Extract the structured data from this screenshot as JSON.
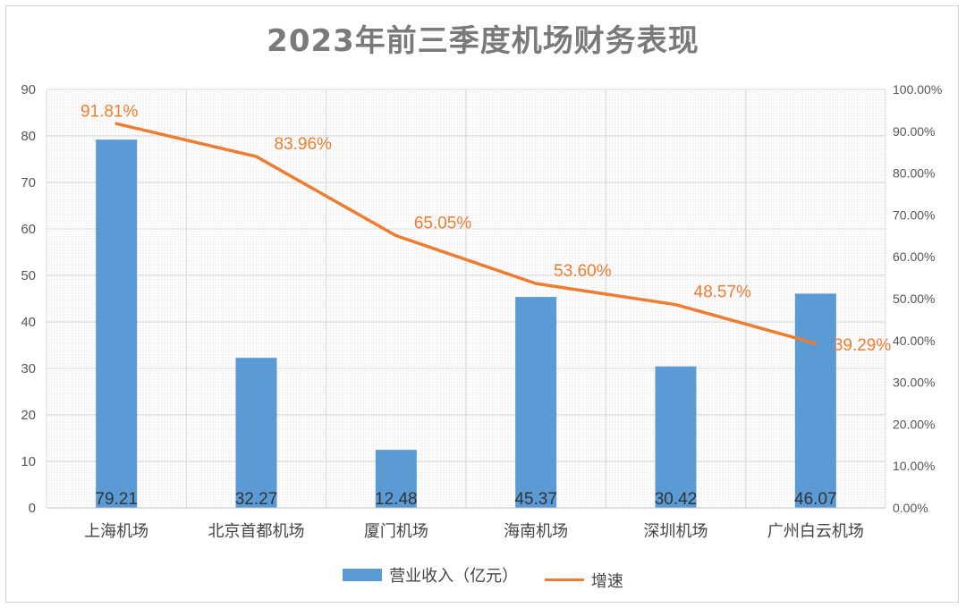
{
  "chart_data": {
    "type": "bar",
    "title": "2023年前三季度机场财务表现",
    "categories": [
      "上海机场",
      "北京首都机场",
      "厦门机场",
      "海南机场",
      "深圳机场",
      "广州白云机场"
    ],
    "series": [
      {
        "name": "营业收入（亿元）",
        "type": "bar",
        "axis": "left",
        "values": [
          79.21,
          32.27,
          12.48,
          45.37,
          30.42,
          46.07
        ],
        "labels": [
          "79.21",
          "32.27",
          "12.48",
          "45.37",
          "30.42",
          "46.07"
        ]
      },
      {
        "name": "增速",
        "type": "line",
        "axis": "right",
        "values": [
          91.81,
          83.96,
          65.05,
          53.6,
          48.57,
          39.29
        ],
        "labels": [
          "91.81%",
          "83.96%",
          "65.05%",
          "53.60%",
          "48.57%",
          "39.29%"
        ]
      }
    ],
    "ylim": [
      0,
      90
    ],
    "yticks": [
      "0",
      "10",
      "20",
      "30",
      "40",
      "50",
      "60",
      "70",
      "80",
      "90"
    ],
    "y2lim": [
      0,
      100
    ],
    "y2ticks": [
      "0.00%",
      "10.00%",
      "20.00%",
      "30.00%",
      "40.00%",
      "50.00%",
      "60.00%",
      "70.00%",
      "80.00%",
      "90.00%",
      "100.00%"
    ],
    "grid": true,
    "legend_position": "bottom",
    "colors": {
      "bar": "#5B9BD5",
      "line": "#ED7D31",
      "grid": "#d9d9d9"
    }
  }
}
